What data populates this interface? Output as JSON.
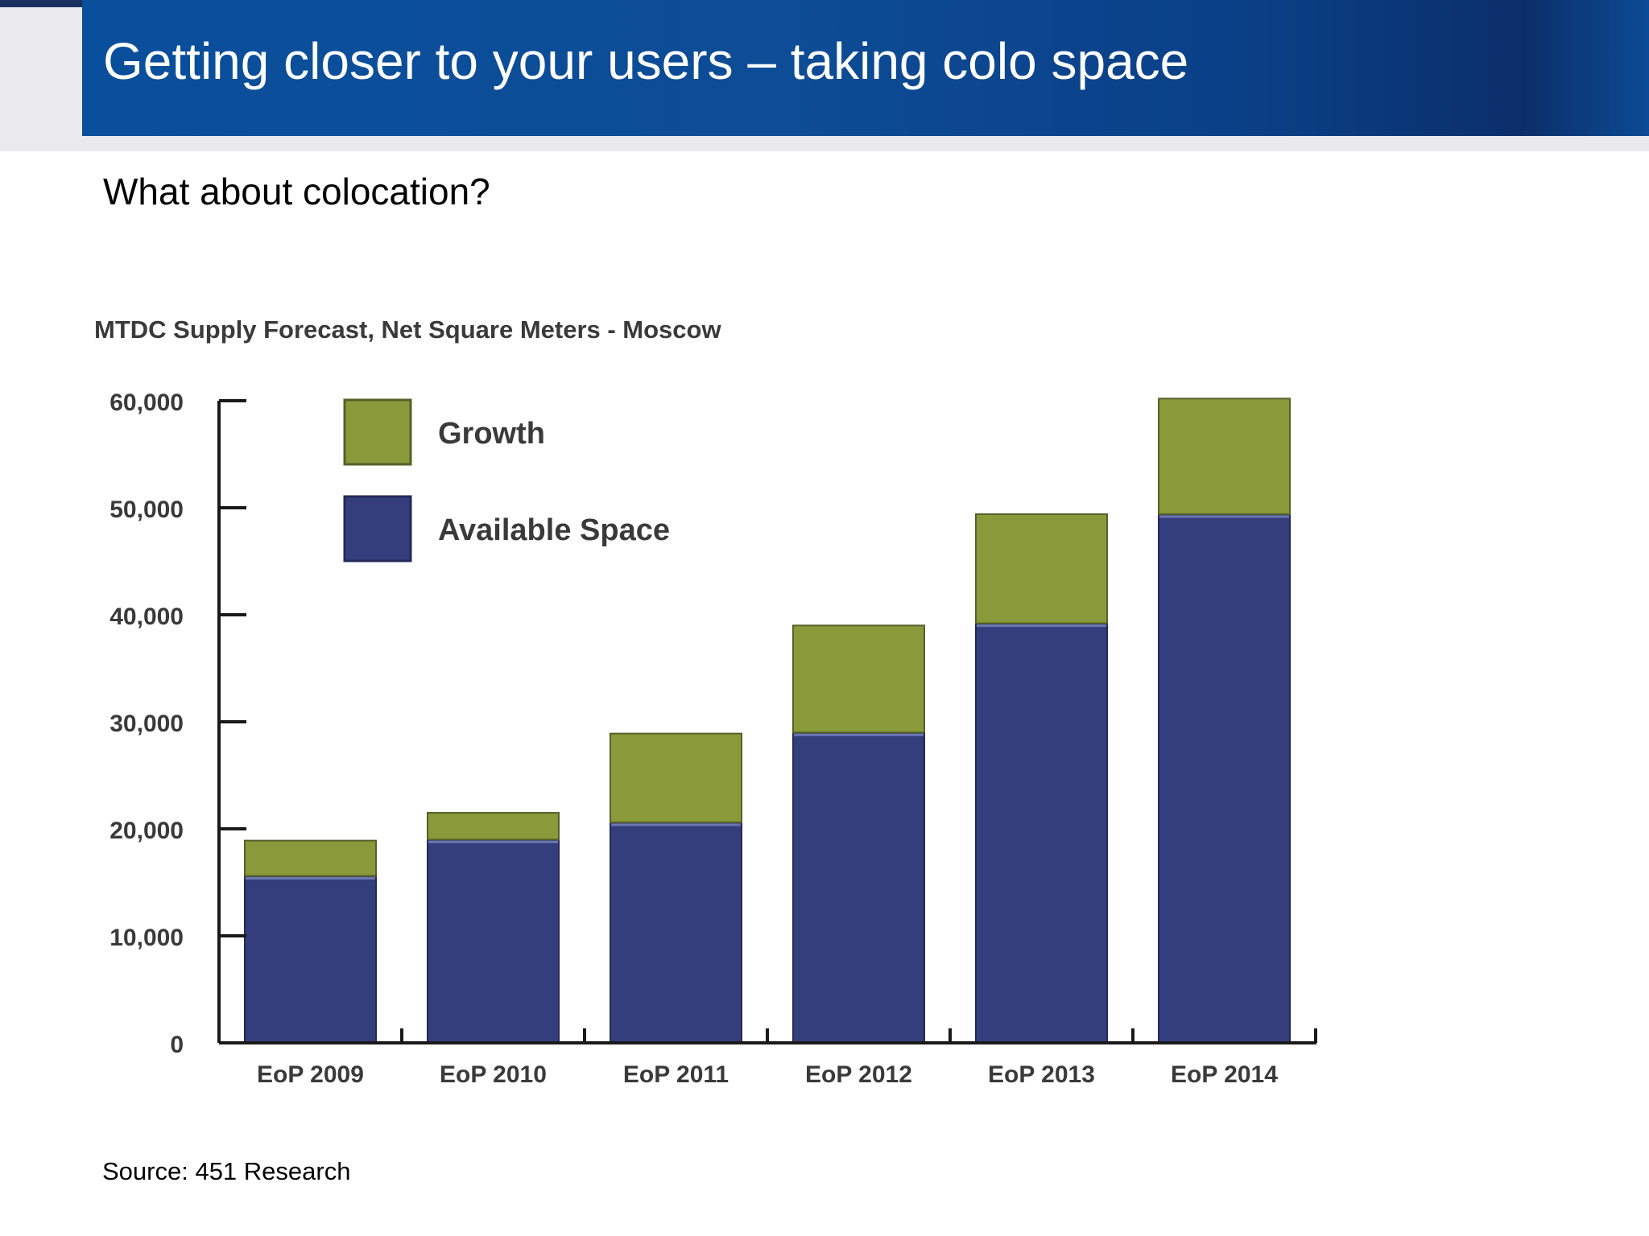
{
  "slide": {
    "title": "Getting closer to your users – taking colo space",
    "subtitle": "What about colocation?",
    "source": "Source: 451 Research"
  },
  "colors": {
    "growth": "#8a9a3a",
    "available": "#343e7c",
    "axis": "#1a1a1a",
    "label": "#3a3a3a"
  },
  "chart_data": {
    "type": "bar",
    "stacked": true,
    "title": "MTDC Supply Forecast, Net Square Meters - Moscow",
    "categories": [
      "EoP 2009",
      "EoP 2010",
      "EoP 2011",
      "EoP 2012",
      "EoP 2013",
      "EoP 2014"
    ],
    "series": [
      {
        "name": "Available Space",
        "values": [
          15600,
          19000,
          20600,
          29000,
          39200,
          49400
        ]
      },
      {
        "name": "Growth",
        "values": [
          3300,
          2500,
          8300,
          10000,
          10200,
          10800
        ]
      }
    ],
    "ylim": [
      0,
      60000
    ],
    "yticks": [
      0,
      10000,
      20000,
      30000,
      40000,
      50000,
      60000
    ],
    "ytick_labels": [
      "0",
      "10,000",
      "20,000",
      "30,000",
      "40,000",
      "50,000",
      "60,000"
    ],
    "legend_position": "top-left",
    "grid": false
  }
}
